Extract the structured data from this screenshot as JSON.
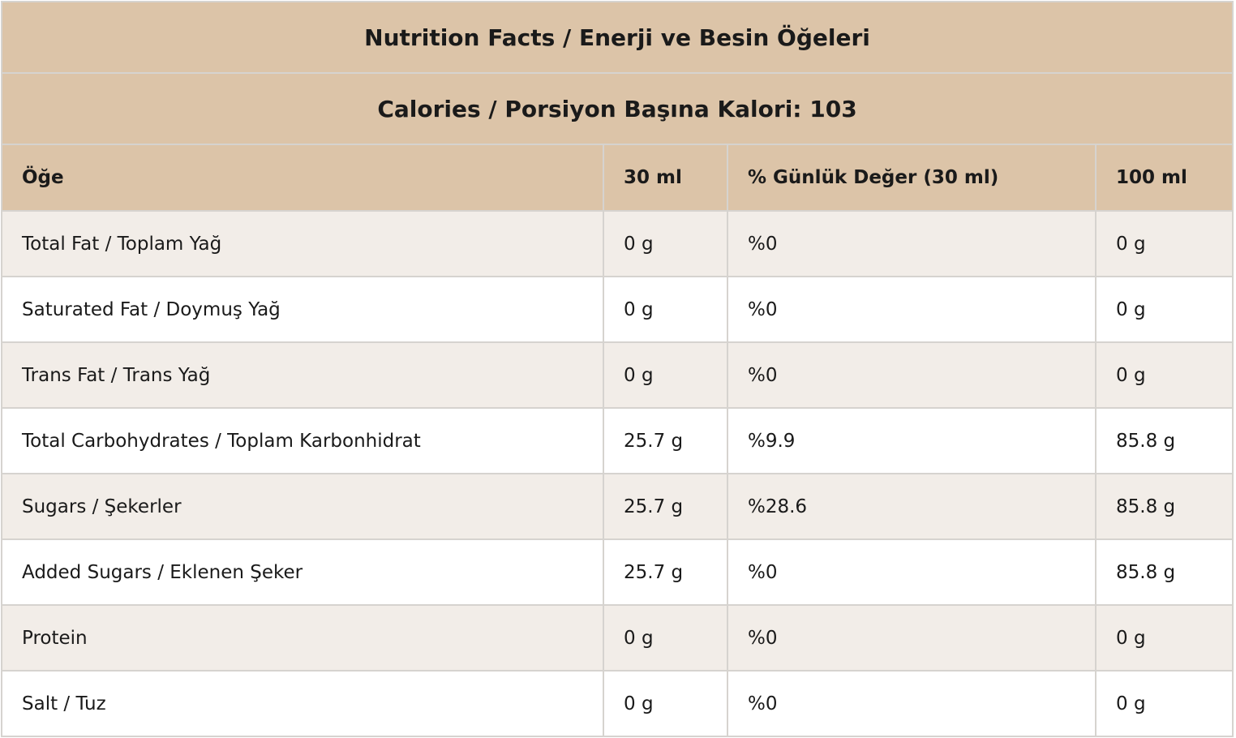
{
  "table": {
    "title": "Nutrition Facts / Enerji ve Besin Öğeleri",
    "calories": "Calories / Porsiyon Başına Kalori: 103",
    "headers": [
      "Öğe",
      "30 ml",
      "% Günlük Değer (30 ml)",
      "100 ml"
    ],
    "rows": [
      [
        "Total Fat / Toplam Yağ",
        "0 g",
        "%0",
        "0 g"
      ],
      [
        "Saturated Fat / Doymuş Yağ",
        "0 g",
        "%0",
        "0 g"
      ],
      [
        "Trans Fat / Trans Yağ",
        "0 g",
        "%0",
        "0 g"
      ],
      [
        "Total Carbohydrates / Toplam Karbonhidrat",
        "25.7 g",
        "%9.9",
        "85.8 g"
      ],
      [
        "Sugars / Şekerler",
        "25.7 g",
        "%28.6",
        "85.8 g"
      ],
      [
        "Added Sugars / Eklenen Şeker",
        "25.7 g",
        "%0",
        "85.8 g"
      ],
      [
        "Protein",
        "0 g",
        "%0",
        "0 g"
      ],
      [
        "Salt / Tuz",
        "0 g",
        "%0",
        "0 g"
      ]
    ]
  }
}
